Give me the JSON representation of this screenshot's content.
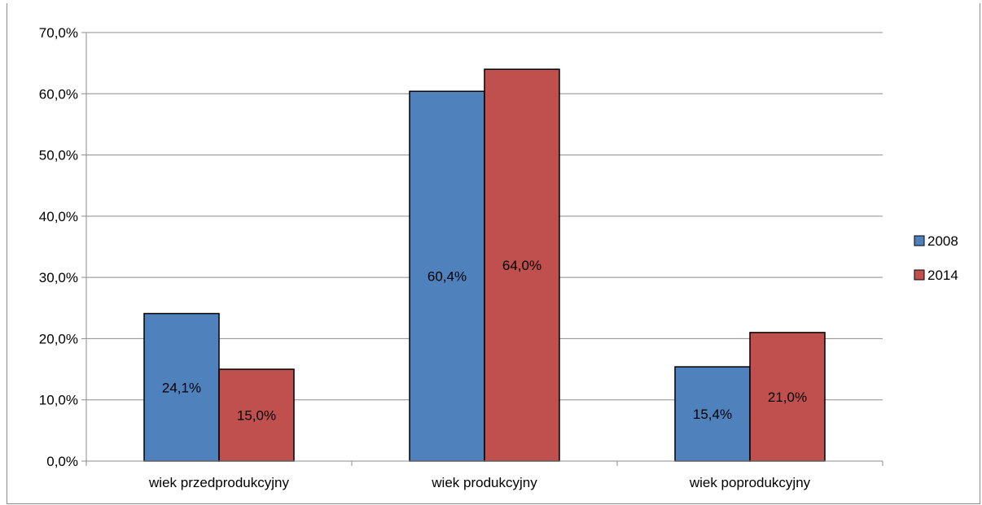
{
  "chart_data": {
    "type": "bar",
    "categories": [
      "wiek przedprodukcyjny",
      "wiek produkcyjny",
      "wiek poprodukcyjny"
    ],
    "series": [
      {
        "name": "2008",
        "values": [
          24.1,
          60.4,
          15.4
        ],
        "labels": [
          "24,1%",
          "60,4%",
          "15,4%"
        ],
        "color": "#4f81bd"
      },
      {
        "name": "2014",
        "values": [
          15.0,
          64.0,
          21.0
        ],
        "labels": [
          "15,0%",
          "64,0%",
          "21,0%"
        ],
        "color": "#c0504d"
      }
    ],
    "ylim": [
      0,
      70
    ],
    "yticks": [
      0,
      10,
      20,
      30,
      40,
      50,
      60,
      70
    ],
    "ytick_labels": [
      "0,0%",
      "10,0%",
      "20,0%",
      "30,0%",
      "40,0%",
      "50,0%",
      "60,0%",
      "70,0%"
    ],
    "grid": true,
    "legend_position": "right"
  }
}
